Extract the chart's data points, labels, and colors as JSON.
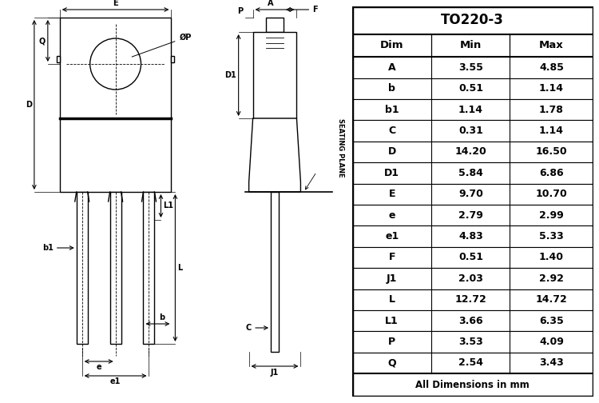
{
  "title": "TO220-3",
  "table_header": [
    "Dim",
    "Min",
    "Max"
  ],
  "table_rows": [
    [
      "A",
      "3.55",
      "4.85"
    ],
    [
      "b",
      "0.51",
      "1.14"
    ],
    [
      "b1",
      "1.14",
      "1.78"
    ],
    [
      "C",
      "0.31",
      "1.14"
    ],
    [
      "D",
      "14.20",
      "16.50"
    ],
    [
      "D1",
      "5.84",
      "6.86"
    ],
    [
      "E",
      "9.70",
      "10.70"
    ],
    [
      "e",
      "2.79",
      "2.99"
    ],
    [
      "e1",
      "4.83",
      "5.33"
    ],
    [
      "F",
      "0.51",
      "1.40"
    ],
    [
      "J1",
      "2.03",
      "2.92"
    ],
    [
      "L",
      "12.72",
      "14.72"
    ],
    [
      "L1",
      "3.66",
      "6.35"
    ],
    [
      "P",
      "3.53",
      "4.09"
    ],
    [
      "Q",
      "2.54",
      "3.43"
    ]
  ],
  "footer": "All Dimensions in mm",
  "bg_color": "#ffffff",
  "line_color": "#000000"
}
